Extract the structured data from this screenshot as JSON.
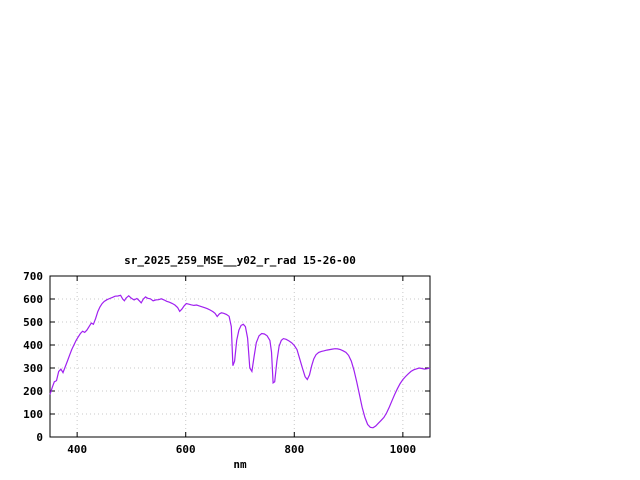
{
  "page": {
    "background": "#ffffff"
  },
  "chart_data": {
    "type": "line",
    "title": "sr_2025_259_MSE__y02_r_rad 15-26-00",
    "xlabel": "nm",
    "ylabel": "",
    "xlim": [
      350,
      1050
    ],
    "ylim": [
      0,
      700
    ],
    "xticks": [
      400,
      600,
      800,
      1000
    ],
    "yticks": [
      0,
      100,
      200,
      300,
      400,
      500,
      600,
      700
    ],
    "grid": true,
    "legend": "none",
    "line_color": "#a020f0",
    "x": [
      350,
      354,
      358,
      362,
      366,
      370,
      374,
      378,
      382,
      386,
      390,
      394,
      398,
      402,
      406,
      410,
      414,
      418,
      422,
      426,
      430,
      434,
      438,
      442,
      446,
      450,
      455,
      460,
      465,
      470,
      475,
      480,
      484,
      487,
      490,
      495,
      500,
      505,
      510,
      515,
      518,
      522,
      526,
      530,
      535,
      540,
      545,
      550,
      555,
      560,
      565,
      570,
      575,
      580,
      585,
      589,
      593,
      597,
      601,
      605,
      610,
      615,
      620,
      625,
      630,
      635,
      640,
      645,
      650,
      654,
      658,
      662,
      666,
      670,
      675,
      680,
      684,
      687,
      690,
      694,
      698,
      702,
      706,
      710,
      714,
      718,
      722,
      726,
      730,
      735,
      740,
      745,
      750,
      755,
      758,
      761,
      764,
      768,
      772,
      776,
      780,
      785,
      790,
      795,
      800,
      805,
      810,
      815,
      820,
      824,
      828,
      832,
      836,
      840,
      845,
      850,
      855,
      860,
      865,
      870,
      875,
      880,
      885,
      890,
      895,
      900,
      905,
      910,
      915,
      920,
      925,
      930,
      935,
      940,
      945,
      950,
      955,
      960,
      965,
      970,
      975,
      980,
      985,
      990,
      995,
      1000,
      1005,
      1010,
      1015,
      1020,
      1025,
      1030,
      1035,
      1040,
      1045,
      1050
    ],
    "values": [
      185,
      215,
      240,
      245,
      285,
      295,
      280,
      305,
      330,
      355,
      380,
      400,
      420,
      435,
      450,
      460,
      455,
      465,
      480,
      495,
      490,
      515,
      545,
      565,
      580,
      590,
      597,
      602,
      607,
      612,
      613,
      616,
      600,
      592,
      604,
      614,
      603,
      596,
      602,
      591,
      583,
      600,
      609,
      603,
      601,
      592,
      596,
      597,
      601,
      596,
      590,
      586,
      581,
      574,
      563,
      546,
      556,
      570,
      580,
      578,
      575,
      572,
      574,
      570,
      566,
      562,
      558,
      552,
      545,
      538,
      524,
      535,
      540,
      538,
      533,
      525,
      480,
      310,
      330,
      420,
      465,
      485,
      490,
      480,
      430,
      300,
      285,
      350,
      410,
      440,
      450,
      448,
      440,
      420,
      370,
      235,
      240,
      330,
      395,
      420,
      428,
      425,
      418,
      410,
      398,
      380,
      340,
      300,
      262,
      250,
      270,
      310,
      340,
      358,
      368,
      372,
      375,
      378,
      380,
      382,
      384,
      383,
      380,
      375,
      368,
      355,
      330,
      290,
      240,
      185,
      130,
      85,
      55,
      42,
      40,
      48,
      60,
      72,
      85,
      105,
      130,
      158,
      185,
      210,
      232,
      250,
      263,
      275,
      285,
      292,
      296,
      300,
      298,
      295,
      297,
      300
    ]
  }
}
